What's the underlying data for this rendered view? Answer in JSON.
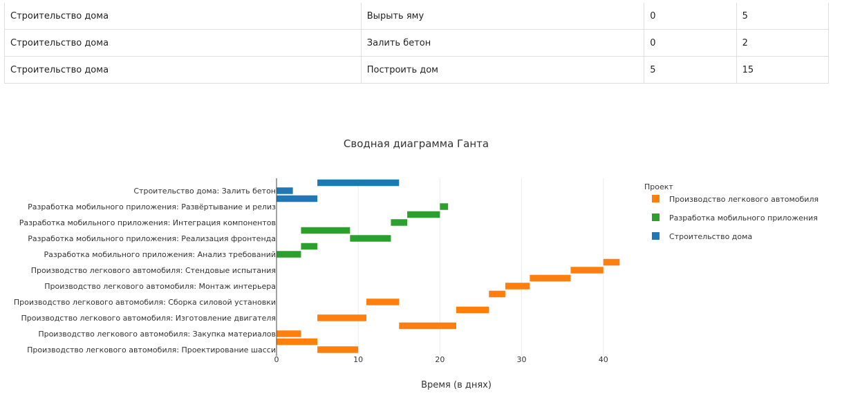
{
  "table": {
    "rows": [
      [
        "Строительство дома",
        "Вырыть яму",
        "0",
        "5"
      ],
      [
        "Строительство дома",
        "Залить бетон",
        "0",
        "2"
      ],
      [
        "Строительство дома",
        "Построить дом",
        "5",
        "15"
      ]
    ]
  },
  "chart_data": {
    "type": "bar",
    "orientation": "horizontal-gantt",
    "title": "Сводная диаграмма Ганта",
    "xlabel": "Время (в днях)",
    "xlim": [
      0,
      44
    ],
    "xticks": [
      0,
      10,
      20,
      30,
      40
    ],
    "grid": true,
    "legend_title": "Проект",
    "legend_placement": "top-right",
    "y_labels_shown": [
      "Строительство дома: Залить бетон",
      "Разработка мобильного приложения: Развёртывание и релиз",
      "Разработка мобильного приложения: Интеграция компонентов",
      "Разработка мобильного приложения: Реализация фронтенда",
      "Разработка мобильного приложения: Анализ требований",
      "Производство легкового автомобиля: Стендовые испытания",
      "Производство легкового автомобиля: Монтаж интерьера",
      "Производство легкового автомобиля: Сборка силовой установки",
      "Производство легкового автомобиля: Изготовление двигателя",
      "Производство легкового автомобиля: Закупка материалов",
      "Производство легкового автомобиля: Проектирование шасси"
    ],
    "series": [
      {
        "name": "Производство легкового автомобиля",
        "color": "#ff7f0e",
        "bars": [
          {
            "row": 0,
            "start": 5,
            "end": 10
          },
          {
            "row": 1,
            "start": 0,
            "end": 5
          },
          {
            "row": 2,
            "start": 0,
            "end": 3
          },
          {
            "row": 3,
            "start": 15,
            "end": 22
          },
          {
            "row": 4,
            "start": 5,
            "end": 11
          },
          {
            "row": 5,
            "start": 22,
            "end": 26
          },
          {
            "row": 6,
            "start": 11,
            "end": 15
          },
          {
            "row": 7,
            "start": 26,
            "end": 28
          },
          {
            "row": 8,
            "start": 28,
            "end": 31
          },
          {
            "row": 9,
            "start": 31,
            "end": 36
          },
          {
            "row": 10,
            "start": 36,
            "end": 40
          },
          {
            "row": 11,
            "start": 40,
            "end": 42
          }
        ]
      },
      {
        "name": "Разработка мобильного приложения",
        "color": "#2ca02c",
        "bars": [
          {
            "row": 12,
            "start": 0,
            "end": 3
          },
          {
            "row": 13,
            "start": 3,
            "end": 5
          },
          {
            "row": 14,
            "start": 9,
            "end": 14
          },
          {
            "row": 15,
            "start": 3,
            "end": 9
          },
          {
            "row": 16,
            "start": 14,
            "end": 16
          },
          {
            "row": 17,
            "start": 16,
            "end": 20
          },
          {
            "row": 18,
            "start": 20,
            "end": 21
          }
        ]
      },
      {
        "name": "Строительство дома",
        "color": "#1f77b4",
        "bars": [
          {
            "row": 19,
            "start": 0,
            "end": 5
          },
          {
            "row": 20,
            "start": 0,
            "end": 2
          },
          {
            "row": 21,
            "start": 5,
            "end": 15
          }
        ]
      }
    ]
  }
}
